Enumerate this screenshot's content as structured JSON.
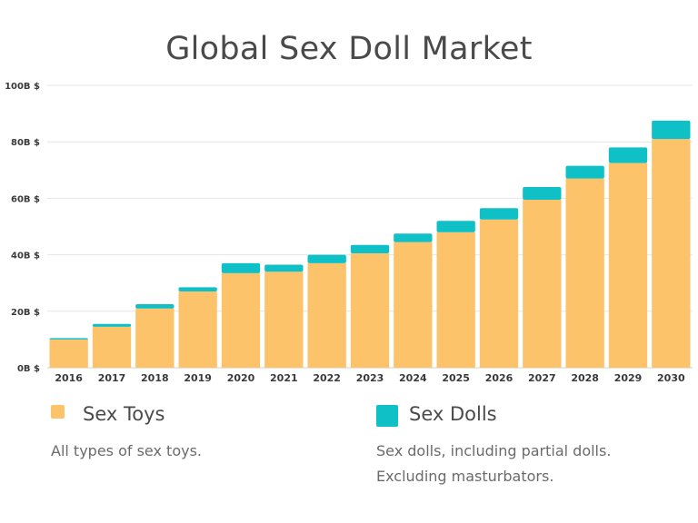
{
  "chart_data": {
    "type": "bar",
    "stacked": true,
    "title": "Global Sex Doll Market",
    "categories": [
      "2016",
      "2017",
      "2018",
      "2019",
      "2020",
      "2021",
      "2022",
      "2023",
      "2024",
      "2025",
      "2026",
      "2027",
      "2028",
      "2029",
      "2030"
    ],
    "series": [
      {
        "name": "Sex Toys",
        "color": "#fdc36b",
        "values": [
          10,
          14.5,
          21,
          27,
          33.5,
          34,
          37,
          40.5,
          44.5,
          48,
          52.5,
          59.5,
          67,
          72.5,
          81
        ]
      },
      {
        "name": "Sex Dolls",
        "color": "#0fc1c6",
        "values": [
          0.5,
          1,
          1.5,
          1.5,
          3.5,
          2.5,
          3,
          3,
          3,
          4,
          4,
          4.5,
          4.5,
          5.5,
          6.5
        ]
      }
    ],
    "ylim": [
      0,
      100
    ],
    "yticks": [
      "0B $",
      "20B $",
      "40B $",
      "60B $",
      "80B $",
      "100B $"
    ],
    "grid": true,
    "legend_position": "bottom"
  },
  "legend": [
    {
      "label": "Sex Toys",
      "color": "#fdc36b",
      "description": [
        "All types of sex toys."
      ]
    },
    {
      "label": "Sex Dolls",
      "color": "#0fc1c6",
      "description": [
        "Sex dolls, including partial dolls.",
        "Excluding masturbators."
      ]
    }
  ]
}
